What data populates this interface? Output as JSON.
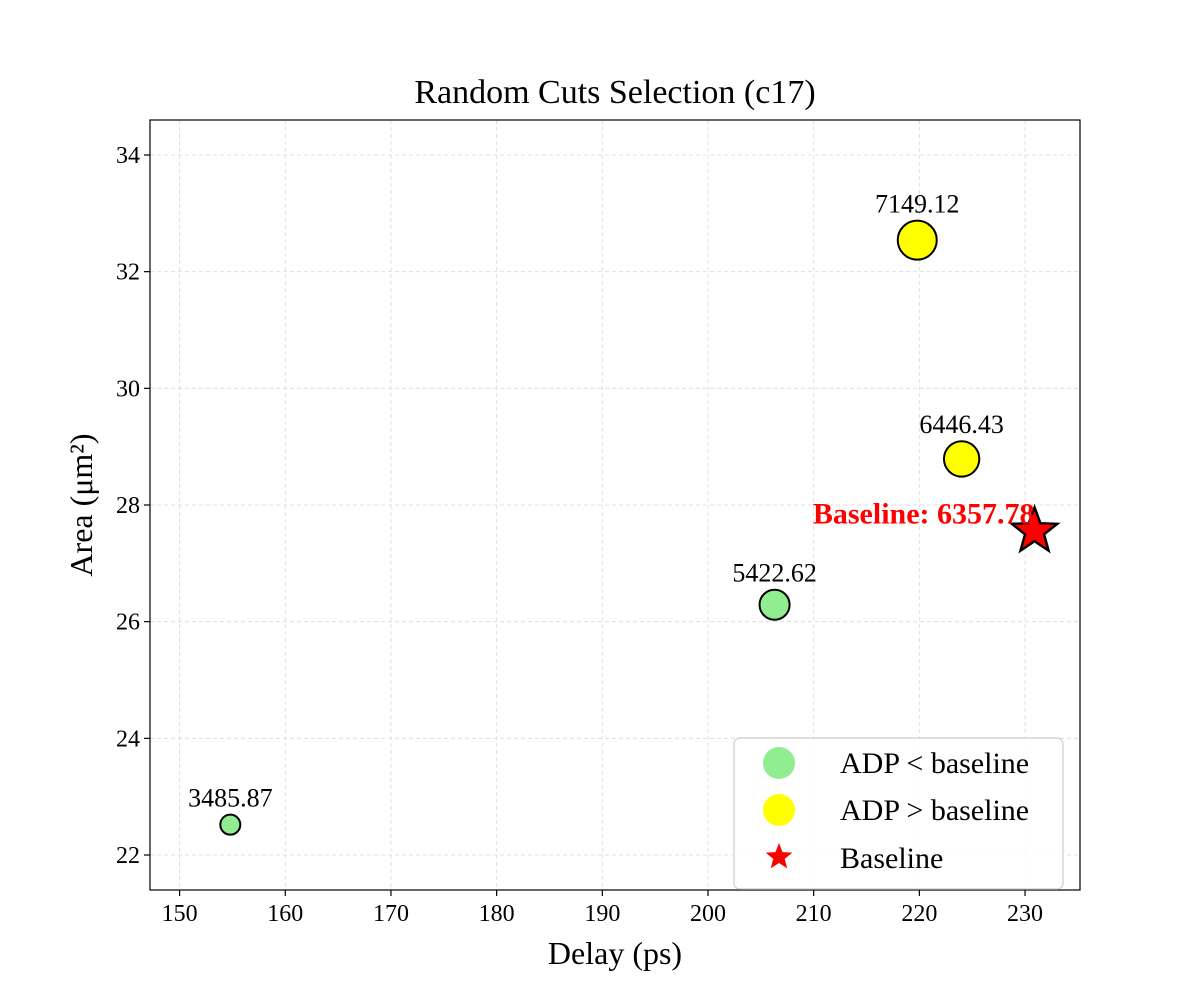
{
  "chart_data": {
    "type": "scatter",
    "title": "Random Cuts Selection (c17)",
    "xlabel": "Delay (ps)",
    "ylabel": "Area (μm²)",
    "xlim": [
      147.2,
      235.2
    ],
    "ylim": [
      21.4,
      34.6
    ],
    "xticks": [
      150,
      160,
      170,
      180,
      190,
      200,
      210,
      220,
      230
    ],
    "yticks": [
      22,
      24,
      26,
      28,
      30,
      32,
      34
    ],
    "grid": true,
    "points": [
      {
        "x": 154.8,
        "y": 22.52,
        "adp": 3485.87,
        "label": "3485.87",
        "category": "below"
      },
      {
        "x": 206.3,
        "y": 26.29,
        "adp": 5422.62,
        "label": "5422.62",
        "category": "below"
      },
      {
        "x": 224.0,
        "y": 28.79,
        "adp": 6446.43,
        "label": "6446.43",
        "category": "above"
      },
      {
        "x": 219.8,
        "y": 32.54,
        "adp": 7149.12,
        "label": "7149.12",
        "category": "above"
      }
    ],
    "baseline": {
      "x": 230.9,
      "y": 27.55,
      "adp": 6357.78,
      "label": "Baseline: 6357.78"
    },
    "legend": {
      "position": "lower-right",
      "entries": [
        {
          "label": "ADP < baseline",
          "marker": "circle",
          "color": "#90ee90"
        },
        {
          "label": "ADP > baseline",
          "marker": "circle",
          "color": "#ffff00"
        },
        {
          "label": "Baseline",
          "marker": "star",
          "color": "#ff0000"
        }
      ]
    },
    "colors": {
      "below": "#90ee90",
      "above": "#ffff00",
      "baseline": "#ff0000",
      "baseline_label": "#ff0000"
    }
  }
}
